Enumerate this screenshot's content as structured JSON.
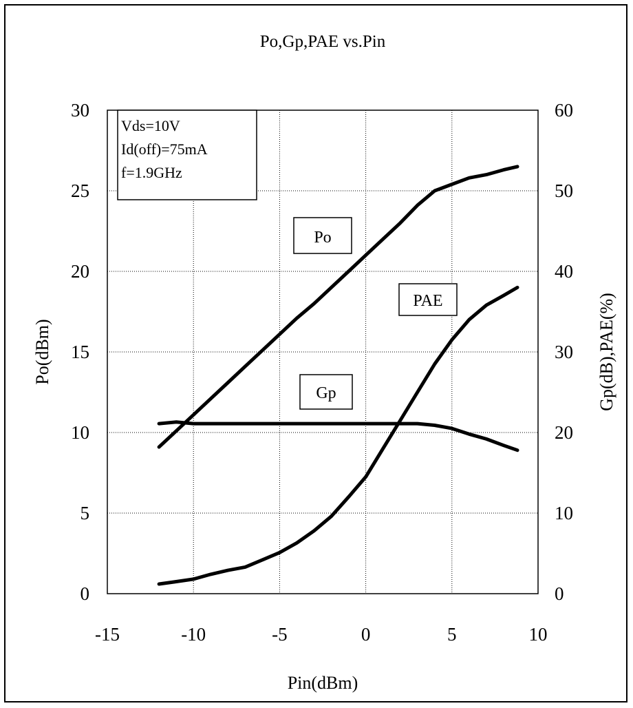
{
  "chart_data": {
    "type": "line",
    "title": "Po,Gp,PAE vs.Pin",
    "xlabel": "Pin(dBm)",
    "ylabel": "Po(dBm)",
    "y2label": "Gp(dB),PAE(%)",
    "xlim": [
      -15,
      10
    ],
    "ylim": [
      0,
      30
    ],
    "y2lim": [
      0,
      60
    ],
    "xticks": [
      -15,
      -10,
      -5,
      0,
      5,
      10
    ],
    "yticks": [
      0,
      5,
      10,
      15,
      20,
      25,
      30
    ],
    "y2ticks": [
      0,
      10,
      20,
      30,
      40,
      50,
      60
    ],
    "grid": "dotted",
    "annotation": [
      "Vds=10V",
      "Id(off)=75mA",
      "f=1.9GHz"
    ],
    "series": [
      {
        "name": "Po",
        "axis": "left",
        "x": [
          -12,
          -11,
          -10,
          -9,
          -8,
          -7,
          -6,
          -5,
          -4,
          -3,
          -2,
          -1,
          0,
          1,
          2,
          3,
          4,
          5,
          6,
          7,
          8,
          8.8
        ],
        "values": [
          9.1,
          10.1,
          11.1,
          12.1,
          13.1,
          14.1,
          15.1,
          16.1,
          17.1,
          18.0,
          19.0,
          20.0,
          21.0,
          22.0,
          23.0,
          24.1,
          25.0,
          25.4,
          25.8,
          26.0,
          26.3,
          26.5
        ]
      },
      {
        "name": "Gp",
        "axis": "right",
        "x": [
          -12,
          -11,
          -10,
          -9,
          -8,
          -7,
          -6,
          -5,
          -4,
          -3,
          -2,
          -1,
          0,
          1,
          2,
          3,
          4,
          5,
          6,
          7,
          8,
          8.8
        ],
        "values": [
          21.1,
          21.3,
          21.1,
          21.1,
          21.1,
          21.1,
          21.1,
          21.1,
          21.1,
          21.1,
          21.1,
          21.1,
          21.1,
          21.1,
          21.1,
          21.1,
          20.9,
          20.5,
          19.8,
          19.2,
          18.4,
          17.8
        ]
      },
      {
        "name": "PAE",
        "axis": "right",
        "x": [
          -12,
          -11,
          -10,
          -9,
          -8,
          -7,
          -6,
          -5,
          -4,
          -3,
          -2,
          -1,
          0,
          1,
          2,
          3,
          4,
          5,
          6,
          7,
          8,
          8.8
        ],
        "values": [
          1.2,
          1.5,
          1.8,
          2.4,
          2.9,
          3.3,
          4.2,
          5.1,
          6.3,
          7.8,
          9.6,
          12.0,
          14.5,
          18.0,
          21.5,
          25.0,
          28.5,
          31.5,
          34.0,
          35.8,
          37.0,
          38.0
        ]
      }
    ]
  }
}
